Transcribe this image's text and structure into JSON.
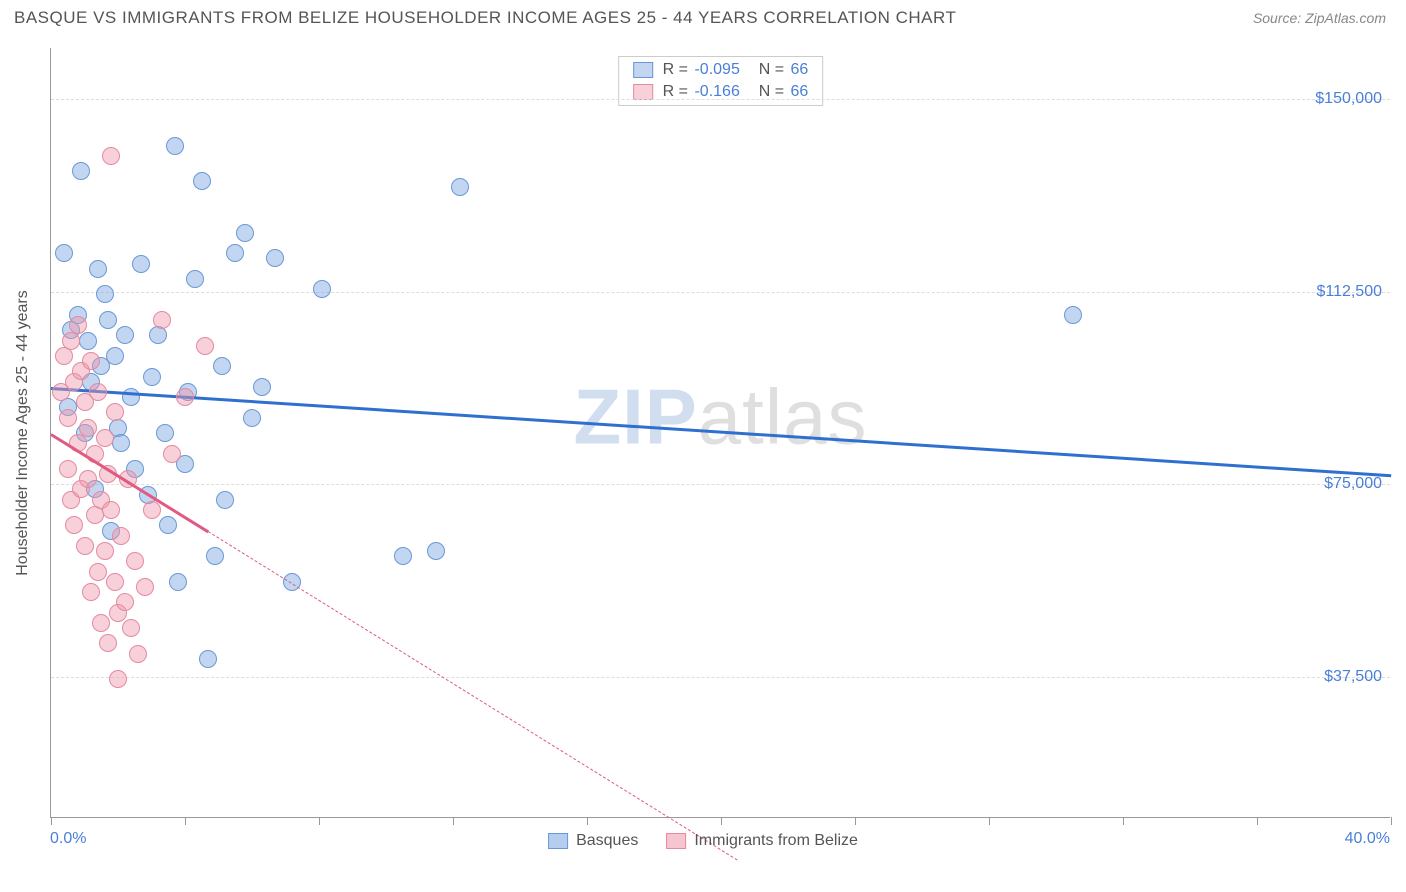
{
  "header": {
    "title": "BASQUE VS IMMIGRANTS FROM BELIZE HOUSEHOLDER INCOME AGES 25 - 44 YEARS CORRELATION CHART",
    "source": "Source: ZipAtlas.com"
  },
  "chart": {
    "type": "scatter",
    "background_color": "#ffffff",
    "grid_color": "#dddddd",
    "axis_color": "#999999",
    "label_color": "#4a7fd8",
    "y_axis_title": "Householder Income Ages 25 - 44 years",
    "xlim": [
      0,
      40
    ],
    "ylim": [
      10000,
      160000
    ],
    "y_ticks": [
      {
        "v": 37500,
        "label": "$37,500"
      },
      {
        "v": 75000,
        "label": "$75,000"
      },
      {
        "v": 112500,
        "label": "$112,500"
      },
      {
        "v": 150000,
        "label": "$150,000"
      }
    ],
    "x_ticks_at": [
      0,
      4,
      8,
      12,
      16,
      20,
      24,
      28,
      32,
      36,
      40
    ],
    "x_start_label": "0.0%",
    "x_end_label": "40.0%",
    "watermark": {
      "left": "ZIP",
      "right": "atlas"
    },
    "series": [
      {
        "name": "Basques",
        "fill": "rgba(120,165,225,0.45)",
        "stroke": "#6a98d6",
        "trend_color": "#2f6fd0",
        "R": "-0.095",
        "N": "66",
        "trend": {
          "x1": 0,
          "y1": 94000,
          "x2": 40,
          "y2": 77000
        },
        "points": [
          [
            0.4,
            120000
          ],
          [
            0.5,
            90000
          ],
          [
            0.6,
            105000
          ],
          [
            0.8,
            108000
          ],
          [
            0.9,
            136000
          ],
          [
            1.0,
            85000
          ],
          [
            1.1,
            103000
          ],
          [
            1.2,
            95000
          ],
          [
            1.3,
            74000
          ],
          [
            1.4,
            117000
          ],
          [
            1.5,
            98000
          ],
          [
            1.6,
            112000
          ],
          [
            1.7,
            107000
          ],
          [
            1.8,
            66000
          ],
          [
            1.9,
            100000
          ],
          [
            2.0,
            86000
          ],
          [
            2.1,
            83000
          ],
          [
            2.2,
            104000
          ],
          [
            2.4,
            92000
          ],
          [
            2.5,
            78000
          ],
          [
            2.7,
            118000
          ],
          [
            2.9,
            73000
          ],
          [
            3.0,
            96000
          ],
          [
            3.2,
            104000
          ],
          [
            3.4,
            85000
          ],
          [
            3.5,
            67000
          ],
          [
            3.7,
            141000
          ],
          [
            3.8,
            56000
          ],
          [
            4.0,
            79000
          ],
          [
            4.1,
            93000
          ],
          [
            4.3,
            115000
          ],
          [
            4.5,
            134000
          ],
          [
            4.7,
            41000
          ],
          [
            4.9,
            61000
          ],
          [
            5.1,
            98000
          ],
          [
            5.2,
            72000
          ],
          [
            5.5,
            120000
          ],
          [
            5.8,
            124000
          ],
          [
            6.0,
            88000
          ],
          [
            6.3,
            94000
          ],
          [
            6.7,
            119000
          ],
          [
            7.2,
            56000
          ],
          [
            8.1,
            113000
          ],
          [
            10.5,
            61000
          ],
          [
            11.5,
            62000
          ],
          [
            12.2,
            133000
          ],
          [
            30.5,
            108000
          ]
        ]
      },
      {
        "name": "Immigrants from Belize",
        "fill": "rgba(240,150,170,0.45)",
        "stroke": "#e48aa0",
        "trend_color": "#e05a82",
        "R": "-0.166",
        "N": "66",
        "trend_solid": {
          "x1": 0,
          "y1": 85000,
          "x2": 4.7,
          "y2": 66000
        },
        "trend_dash": {
          "x1": 4.7,
          "y1": 66000,
          "x2": 20.5,
          "y2": 2000
        },
        "points": [
          [
            0.3,
            93000
          ],
          [
            0.4,
            100000
          ],
          [
            0.5,
            78000
          ],
          [
            0.5,
            88000
          ],
          [
            0.6,
            103000
          ],
          [
            0.6,
            72000
          ],
          [
            0.7,
            95000
          ],
          [
            0.7,
            67000
          ],
          [
            0.8,
            106000
          ],
          [
            0.8,
            83000
          ],
          [
            0.9,
            97000
          ],
          [
            0.9,
            74000
          ],
          [
            1.0,
            91000
          ],
          [
            1.0,
            63000
          ],
          [
            1.1,
            86000
          ],
          [
            1.1,
            76000
          ],
          [
            1.2,
            99000
          ],
          [
            1.2,
            54000
          ],
          [
            1.3,
            69000
          ],
          [
            1.3,
            81000
          ],
          [
            1.4,
            93000
          ],
          [
            1.4,
            58000
          ],
          [
            1.5,
            72000
          ],
          [
            1.5,
            48000
          ],
          [
            1.6,
            84000
          ],
          [
            1.6,
            62000
          ],
          [
            1.7,
            77000
          ],
          [
            1.7,
            44000
          ],
          [
            1.8,
            70000
          ],
          [
            1.8,
            139000
          ],
          [
            1.9,
            56000
          ],
          [
            1.9,
            89000
          ],
          [
            2.0,
            50000
          ],
          [
            2.0,
            37000
          ],
          [
            2.1,
            65000
          ],
          [
            2.2,
            52000
          ],
          [
            2.3,
            76000
          ],
          [
            2.4,
            47000
          ],
          [
            2.5,
            60000
          ],
          [
            2.6,
            42000
          ],
          [
            2.8,
            55000
          ],
          [
            3.0,
            70000
          ],
          [
            3.3,
            107000
          ],
          [
            3.6,
            81000
          ],
          [
            4.0,
            92000
          ],
          [
            4.6,
            102000
          ]
        ]
      }
    ]
  },
  "bottom_legend": [
    {
      "label": "Basques",
      "fill": "rgba(120,165,225,0.55)",
      "stroke": "#6a98d6"
    },
    {
      "label": "Immigrants from Belize",
      "fill": "rgba(240,150,170,0.55)",
      "stroke": "#e48aa0"
    }
  ]
}
